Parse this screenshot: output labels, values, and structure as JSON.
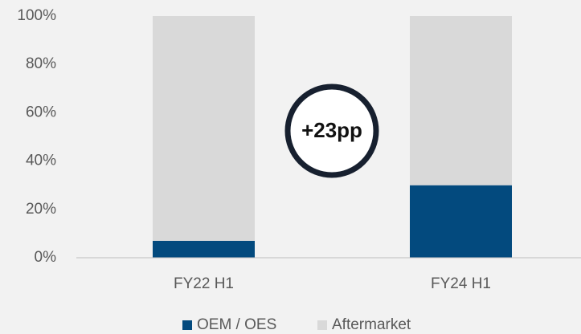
{
  "chart_data": {
    "type": "stacked-bar",
    "categories": [
      "FY22 H1",
      "FY24 H1"
    ],
    "series": [
      {
        "name": "OEM / OES",
        "color": "#034a7e",
        "values": [
          7,
          30
        ]
      },
      {
        "name": "Aftermarket",
        "color": "#d9d9d9",
        "values": [
          93,
          70
        ]
      }
    ],
    "ylim": [
      0,
      100
    ],
    "yticks": [
      {
        "value": 0,
        "label": "0%"
      },
      {
        "value": 20,
        "label": "20%"
      },
      {
        "value": 40,
        "label": "40%"
      },
      {
        "value": 60,
        "label": "60%"
      },
      {
        "value": 80,
        "label": "80%"
      },
      {
        "value": 100,
        "label": "100%"
      }
    ],
    "annotation": "+23pp",
    "legend": "bottom"
  }
}
